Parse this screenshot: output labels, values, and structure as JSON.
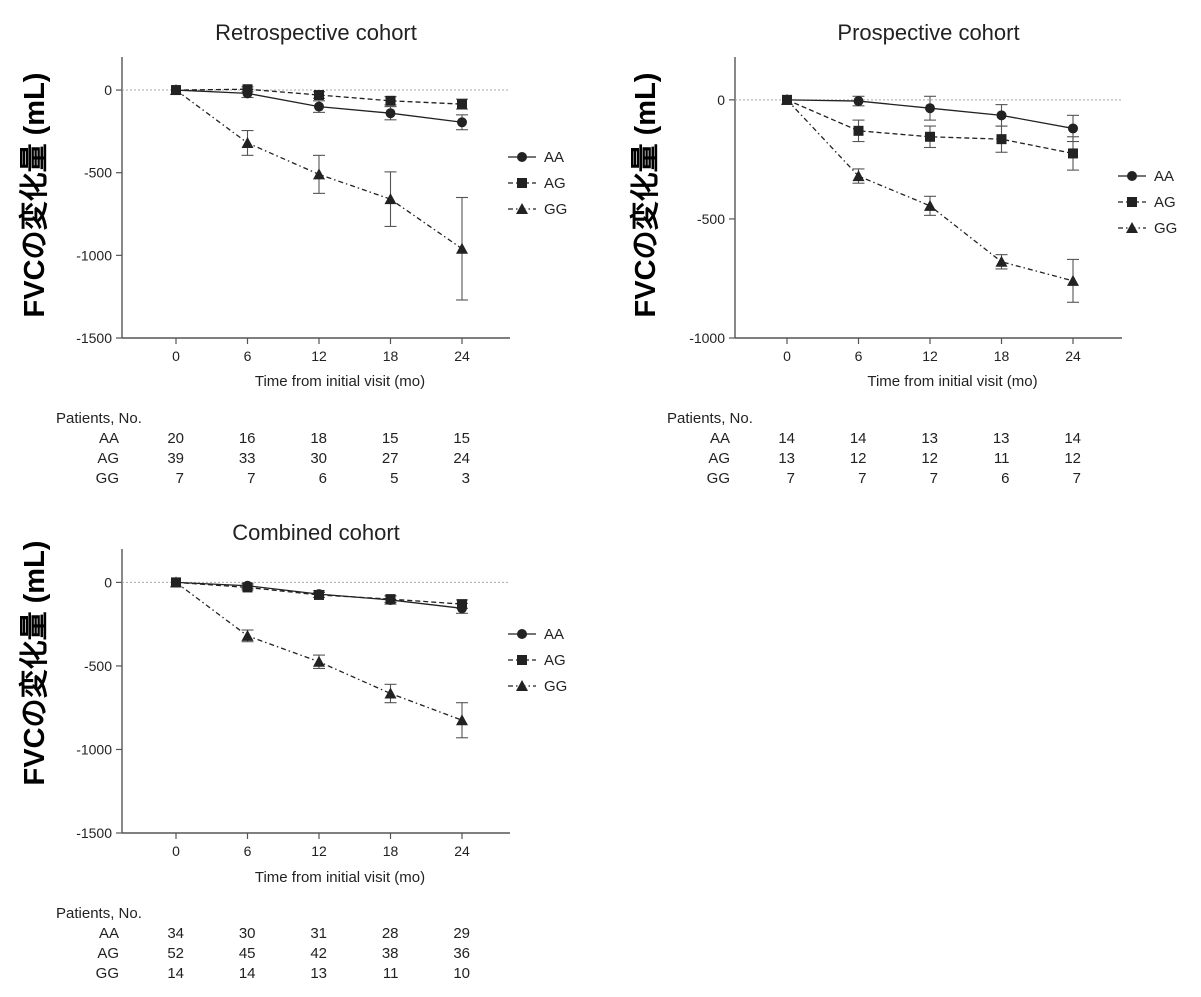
{
  "chart_data": [
    {
      "type": "line",
      "title": "Retrospective cohort",
      "xlabel": "Time from initial visit (mo)",
      "ylabel": "FVCの変化量 (mL)",
      "x": [
        0,
        6,
        12,
        18,
        24
      ],
      "xticks": [
        "0",
        "6",
        "12",
        "18",
        "24"
      ],
      "ylim": [
        -1500,
        200
      ],
      "yticks": [
        0,
        -500,
        -1000,
        -1500
      ],
      "yticklabels": [
        "0",
        "-500",
        "-1000",
        "-1500"
      ],
      "reference_line": 0,
      "legend_position": "right",
      "series": [
        {
          "name": "AA",
          "marker": "circle",
          "line": "solid",
          "values": [
            0,
            -20,
            -100,
            -140,
            -195
          ],
          "err": [
            0,
            25,
            35,
            40,
            45
          ]
        },
        {
          "name": "AG",
          "marker": "square",
          "line": "dashed",
          "values": [
            0,
            5,
            -30,
            -65,
            -85
          ],
          "err": [
            0,
            15,
            20,
            25,
            30
          ]
        },
        {
          "name": "GG",
          "marker": "triangle",
          "line": "dashdot",
          "values": [
            0,
            -320,
            -510,
            -660,
            -960
          ],
          "err": [
            0,
            75,
            115,
            165,
            310
          ]
        }
      ],
      "patients": {
        "header": "Patients, No.",
        "rows": [
          {
            "label": "AA",
            "values": [
              "20",
              "16",
              "18",
              "15",
              "15"
            ]
          },
          {
            "label": "AG",
            "values": [
              "39",
              "33",
              "30",
              "27",
              "24"
            ]
          },
          {
            "label": "GG",
            "values": [
              "7",
              "7",
              "6",
              "5",
              "3"
            ]
          }
        ]
      }
    },
    {
      "type": "line",
      "title": "Prospective cohort",
      "xlabel": "Time from initial visit (mo)",
      "ylabel": "FVCの変化量 (mL)",
      "x": [
        0,
        6,
        12,
        18,
        24
      ],
      "xticks": [
        "0",
        "6",
        "12",
        "18",
        "24"
      ],
      "ylim": [
        -1000,
        180
      ],
      "yticks": [
        0,
        -500,
        -1000
      ],
      "yticklabels": [
        "0",
        "-500",
        "-1000"
      ],
      "reference_line": 0,
      "legend_position": "right",
      "series": [
        {
          "name": "AA",
          "marker": "circle",
          "line": "solid",
          "values": [
            0,
            -5,
            -35,
            -65,
            -120
          ],
          "err": [
            0,
            20,
            50,
            45,
            55
          ]
        },
        {
          "name": "AG",
          "marker": "square",
          "line": "dashed",
          "values": [
            0,
            -130,
            -155,
            -165,
            -225
          ],
          "err": [
            0,
            45,
            45,
            55,
            70
          ]
        },
        {
          "name": "GG",
          "marker": "triangle",
          "line": "dashdot",
          "values": [
            0,
            -320,
            -445,
            -680,
            -760
          ],
          "err": [
            0,
            30,
            40,
            30,
            90
          ]
        }
      ],
      "patients": {
        "header": "Patients, No.",
        "rows": [
          {
            "label": "AA",
            "values": [
              "14",
              "14",
              "13",
              "13",
              "14"
            ]
          },
          {
            "label": "AG",
            "values": [
              "13",
              "12",
              "12",
              "11",
              "12"
            ]
          },
          {
            "label": "GG",
            "values": [
              "7",
              "7",
              "7",
              "6",
              "7"
            ]
          }
        ]
      }
    },
    {
      "type": "line",
      "title": "Combined cohort",
      "xlabel": "Time from initial visit (mo)",
      "ylabel": "FVCの変化量 (mL)",
      "x": [
        0,
        6,
        12,
        18,
        24
      ],
      "xticks": [
        "0",
        "6",
        "12",
        "18",
        "24"
      ],
      "ylim": [
        -1500,
        200
      ],
      "yticks": [
        0,
        -500,
        -1000,
        -1500
      ],
      "yticklabels": [
        "0",
        "-500",
        "-1000",
        "-1500"
      ],
      "reference_line": 0,
      "legend_position": "right",
      "series": [
        {
          "name": "AA",
          "marker": "circle",
          "line": "solid",
          "values": [
            0,
            -20,
            -70,
            -105,
            -155
          ],
          "err": [
            0,
            15,
            20,
            25,
            30
          ]
        },
        {
          "name": "AG",
          "marker": "square",
          "line": "dashed",
          "values": [
            0,
            -30,
            -75,
            -100,
            -130
          ],
          "err": [
            0,
            15,
            15,
            20,
            25
          ]
        },
        {
          "name": "GG",
          "marker": "triangle",
          "line": "dashdot",
          "values": [
            0,
            -320,
            -475,
            -665,
            -825
          ],
          "err": [
            0,
            35,
            40,
            55,
            105
          ]
        }
      ],
      "patients": {
        "header": "Patients, No.",
        "rows": [
          {
            "label": "AA",
            "values": [
              "34",
              "30",
              "31",
              "28",
              "29"
            ]
          },
          {
            "label": "AG",
            "values": [
              "52",
              "45",
              "42",
              "38",
              "36"
            ]
          },
          {
            "label": "GG",
            "values": [
              "14",
              "14",
              "13",
              "11",
              "10"
            ]
          }
        ]
      }
    }
  ],
  "colors": {
    "ink": "#222222",
    "axis": "#555555",
    "reference": "#aaaaaa",
    "ylabel": "#000000"
  }
}
